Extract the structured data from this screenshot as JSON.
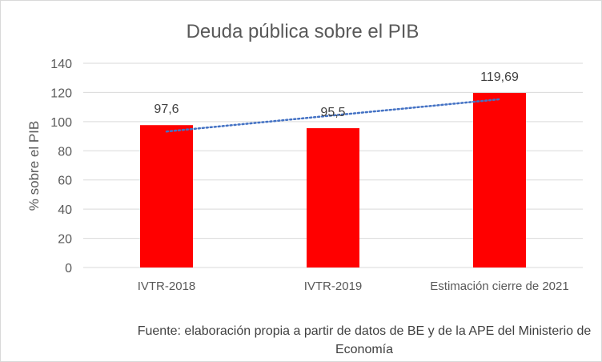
{
  "chart_data": {
    "type": "bar",
    "title": "Deuda pública sobre el PIB",
    "ylabel": "% sobre el PIB",
    "xlabel": "",
    "categories": [
      "IVTR-2018",
      "IVTR-2019",
      "Estimación cierre de 2021"
    ],
    "values": [
      97.6,
      95.5,
      119.69
    ],
    "data_labels": [
      "97,6",
      "95,5",
      "119,69"
    ],
    "ylim": [
      0,
      140
    ],
    "yticks": [
      0,
      20,
      40,
      60,
      80,
      100,
      120,
      140
    ],
    "grid": true,
    "trendline": {
      "type": "linear",
      "style": "dotted"
    },
    "bar_color": "#ff0000",
    "trend_color": "#4472c4"
  },
  "source_note": "Fuente: elaboración propia a partir de datos de BE y de la APE del Ministerio de Economía"
}
